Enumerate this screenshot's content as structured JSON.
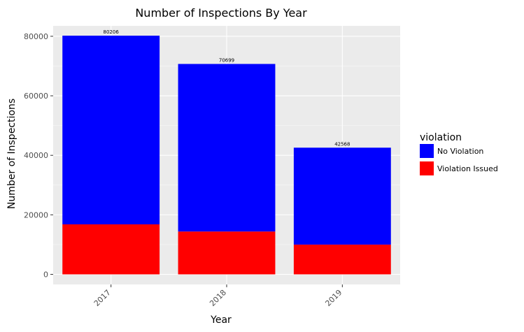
{
  "chart_data": {
    "type": "bar",
    "stacked": true,
    "title": "Number of Inspections By Year",
    "xlabel": "Year",
    "ylabel": "Number of Inspections",
    "categories": [
      "2017",
      "2018",
      "2019"
    ],
    "series": [
      {
        "name": "Violation Issued",
        "color": "#ff0000",
        "values": [
          16800,
          14400,
          10000
        ]
      },
      {
        "name": "No Violation",
        "color": "#0000ff",
        "values": [
          63406,
          56299,
          32568
        ]
      }
    ],
    "totals_labels": [
      "80206",
      "70699",
      "42568"
    ],
    "totals": [
      80206,
      70699,
      42568
    ],
    "ylim": [
      -3400,
      83500
    ],
    "y_ticks": [
      0,
      20000,
      40000,
      60000,
      80000
    ],
    "y_tick_labels": [
      "0",
      "20000",
      "40000",
      "60000",
      "80000"
    ],
    "grid": true,
    "panel_background": "#ebebeb",
    "legend": {
      "title": "violation",
      "placement": "right",
      "entries": [
        {
          "label": "No Violation",
          "color": "#0000ff"
        },
        {
          "label": "Violation Issued",
          "color": "#ff0000"
        }
      ]
    }
  }
}
